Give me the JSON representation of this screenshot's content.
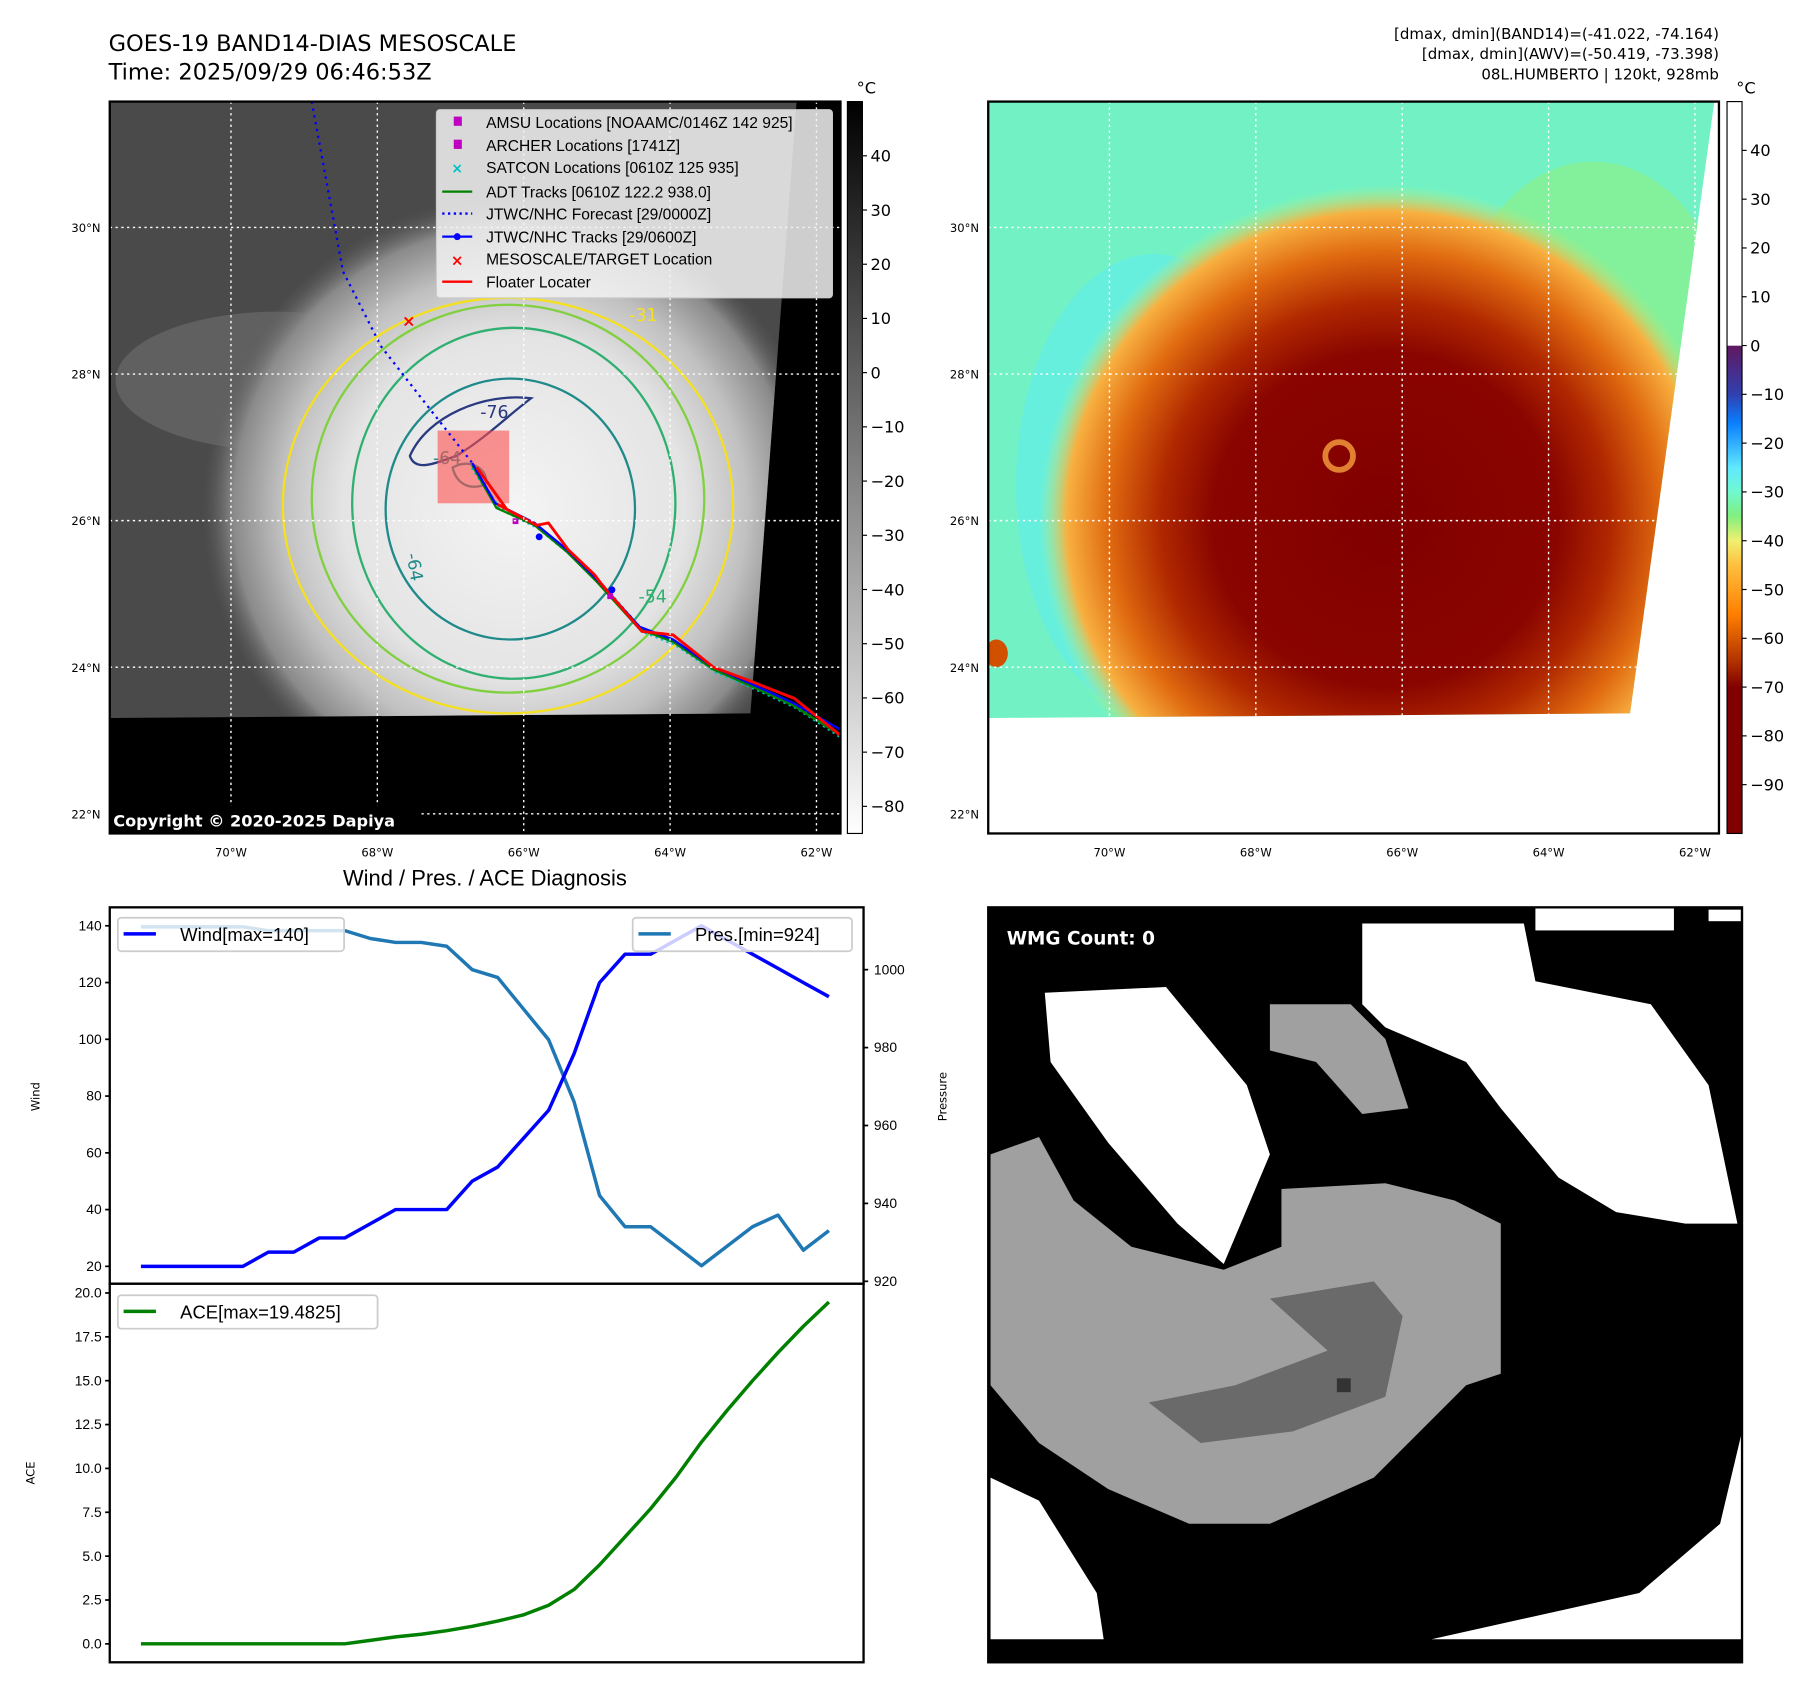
{
  "header": {
    "title": "GOES-19 BAND14-DIAS MESOSCALE",
    "time": "Time: 2025/09/29 06:46:53Z",
    "stats": [
      "[dmax, dmin](BAND14)=(-41.022, -74.164)",
      "[dmax, dmin](AWV)=(-50.419, -73.398)",
      "08L.HUMBERTO | 120kt, 928mb"
    ]
  },
  "map_ir": {
    "lat_ticks": [
      {
        "value": 30,
        "label": "30°N"
      },
      {
        "value": 28,
        "label": "28°N"
      },
      {
        "value": 26,
        "label": "26°N"
      },
      {
        "value": 24,
        "label": "24°N"
      },
      {
        "value": 22,
        "label": "22°N"
      }
    ],
    "lon_ticks": [
      {
        "value": -70,
        "label": "70°W"
      },
      {
        "value": -68,
        "label": "68°W"
      },
      {
        "value": -66,
        "label": "66°W"
      },
      {
        "value": -64,
        "label": "64°W"
      },
      {
        "value": -62,
        "label": "62°W"
      }
    ],
    "colorbar": {
      "unit": "°C",
      "range": [
        -85,
        50
      ],
      "ticks": [
        40,
        30,
        20,
        10,
        0,
        -10,
        -20,
        -30,
        -40,
        -50,
        -60,
        -70,
        -80
      ]
    },
    "legend": {
      "items": [
        {
          "label": "AMSU Locations [NOAAMC/0146Z 142 925]",
          "color": "#c000c0"
        },
        {
          "label": "ARCHER Locations [1741Z]",
          "color": "#c000c0"
        },
        {
          "label": "SATCON Locations [0610Z 125 935]",
          "color": "#00c0c0"
        },
        {
          "label": "ADT Tracks [0610Z 122.2 938.0]",
          "color": "#008000"
        },
        {
          "label": "JTWC/NHC Forecast [29/0000Z]",
          "color": "#0000ff"
        },
        {
          "label": "JTWC/NHC Tracks [29/0600Z]",
          "color": "#0000ff"
        },
        {
          "label": "MESOSCALE/TARGET Location",
          "color": "#ff0000"
        },
        {
          "label": "Floater Locater",
          "color": "#ff0000"
        }
      ]
    },
    "contour_labels": [
      "-31",
      "-76",
      "-64",
      "-64",
      "-54"
    ],
    "copyright": "Copyright © 2020-2025 Dapiya"
  },
  "map_awv": {
    "lat_ticks": [
      {
        "value": 30,
        "label": "30°N"
      },
      {
        "value": 28,
        "label": "28°N"
      },
      {
        "value": 26,
        "label": "26°N"
      },
      {
        "value": 24,
        "label": "24°N"
      },
      {
        "value": 22,
        "label": "22°N"
      }
    ],
    "lon_ticks": [
      {
        "value": -70,
        "label": "70°W"
      },
      {
        "value": -68,
        "label": "68°W"
      },
      {
        "value": -66,
        "label": "66°W"
      },
      {
        "value": -64,
        "label": "64°W"
      },
      {
        "value": -62,
        "label": "62°W"
      }
    ],
    "colorbar": {
      "unit": "°C",
      "range": [
        -100,
        50
      ],
      "ticks": [
        40,
        30,
        20,
        10,
        0,
        -10,
        -20,
        -30,
        -40,
        -50,
        -60,
        -70,
        -80,
        -90
      ]
    }
  },
  "chart_data": [
    {
      "type": "line",
      "title": "Wind / Pres. / ACE Diagnosis",
      "x": [
        0,
        1,
        2,
        3,
        4,
        5,
        6,
        7,
        8,
        9,
        10,
        11,
        12,
        13,
        14,
        15,
        16,
        17,
        18,
        19,
        20,
        21,
        22,
        23,
        24,
        25,
        26,
        27
      ],
      "ylabel": "Wind",
      "y2label": "Pressure",
      "ylim": [
        13.9,
        146.5
      ],
      "y2lim": [
        919.4,
        1016
      ],
      "yticks": [
        20,
        40,
        60,
        80,
        100,
        120,
        140
      ],
      "y2ticks": [
        920,
        940,
        960,
        980,
        1000
      ],
      "series": [
        {
          "name": "Wind[max=140]",
          "axis": "left",
          "color": "#0000ff",
          "values": [
            20,
            20,
            20,
            20,
            20,
            25,
            25,
            30,
            30,
            35,
            40,
            40,
            40,
            50,
            55,
            65,
            75,
            95,
            120,
            130,
            130,
            135,
            140,
            135,
            130,
            125,
            120,
            115
          ]
        },
        {
          "name": "Pres.[min=924]",
          "axis": "right",
          "color": "#1f77b4",
          "values": [
            1011,
            1011,
            1011,
            1011,
            1011,
            1010,
            1010,
            1010,
            1010,
            1008,
            1007,
            1007,
            1006,
            1000,
            998,
            990,
            982,
            966,
            942,
            934,
            934,
            929,
            924,
            929,
            934,
            937,
            928,
            933
          ]
        }
      ],
      "legend": [
        "top-left",
        "top-right"
      ]
    },
    {
      "type": "line",
      "title": "",
      "x": [
        0,
        1,
        2,
        3,
        4,
        5,
        6,
        7,
        8,
        9,
        10,
        11,
        12,
        13,
        14,
        15,
        16,
        17,
        18,
        19,
        20,
        21,
        22,
        23,
        24,
        25,
        26,
        27
      ],
      "ylabel": "ACE",
      "ylim": [
        -1.05,
        20.53
      ],
      "yticks": [
        0.0,
        2.5,
        5.0,
        7.5,
        10.0,
        12.5,
        15.0,
        17.5,
        20.0
      ],
      "ytick_labels": [
        "0.0",
        "2.5",
        "5.0",
        "7.5",
        "10.0",
        "12.5",
        "15.0",
        "17.5",
        "20.0"
      ],
      "series": [
        {
          "name": "ACE[max=19.4825]",
          "axis": "left",
          "color": "#008000",
          "values": [
            0,
            0,
            0,
            0,
            0,
            0,
            0,
            0,
            0,
            0.2,
            0.4,
            0.55,
            0.75,
            1.0,
            1.3,
            1.65,
            2.2,
            3.1,
            4.5,
            6.1,
            7.7,
            9.5,
            11.5,
            13.3,
            15.0,
            16.6,
            18.1,
            19.4825
          ]
        }
      ],
      "legend": [
        "top-left"
      ]
    }
  ],
  "wmg": {
    "label": "WMG Count: 0"
  }
}
